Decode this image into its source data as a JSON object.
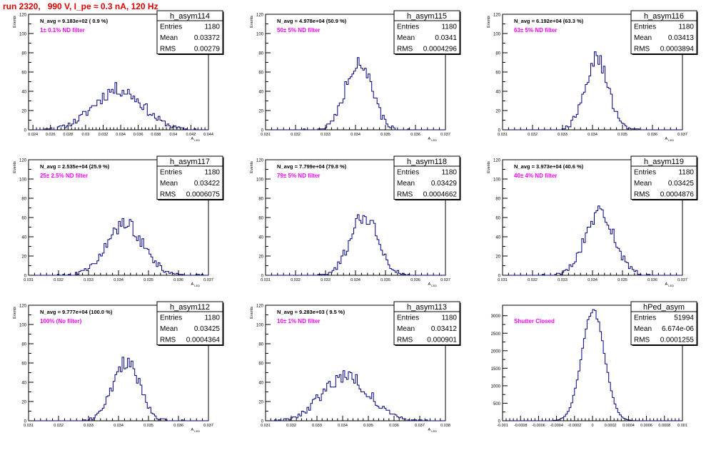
{
  "page_title": "run 2320,   990 V, I_pe ≈ 0.3 nA, 120 Hz",
  "colors": {
    "hist_line": "#000080",
    "annotation": "#ff00ff",
    "title": "#e00000",
    "frame": "#000000"
  },
  "stat_labels": {
    "entries": "Entries",
    "mean": "Mean",
    "rms": "RMS"
  },
  "chart_data": [
    {
      "type": "bar",
      "name": "h_asym114",
      "xlabel": "A_LED",
      "ylabel": "Events",
      "ylim": [
        0,
        120
      ],
      "yticks": [
        0,
        20,
        40,
        60,
        80,
        100,
        120
      ],
      "xlim": [
        0.0235,
        0.044
      ],
      "xticks": [
        0.024,
        0.026,
        0.028,
        0.03,
        0.032,
        0.034,
        0.036,
        0.038,
        0.04,
        0.042,
        0.044
      ],
      "xtick_labels": [
        "0.024",
        "0.026",
        "0.028",
        "0.03",
        "0.032",
        "0.034",
        "0.036",
        "0.038",
        "0.04",
        "0.042",
        "0.044"
      ],
      "navg": "N_avg = 9.183e+02 ( 0.9 %)",
      "filter": "1± 0.1% ND filter",
      "stats": {
        "entries": "1180",
        "mean": "0.03372",
        "rms": "0.00279"
      },
      "mean": 0.03372,
      "rms": 0.00279,
      "peak": 42,
      "nbins": 100,
      "seed": 11
    },
    {
      "type": "bar",
      "name": "h_asym115",
      "xlabel": "A_LED",
      "ylabel": "Events",
      "ylim": [
        0,
        120
      ],
      "yticks": [
        0,
        20,
        40,
        60,
        80,
        100,
        120
      ],
      "xlim": [
        0.031,
        0.037
      ],
      "xticks": [
        0.031,
        0.032,
        0.033,
        0.034,
        0.035,
        0.036,
        0.037
      ],
      "xtick_labels": [
        "0.031",
        "0.032",
        "0.033",
        "0.034",
        "0.035",
        "0.036",
        "0.037"
      ],
      "navg": "N_avg = 4.978e+04 (50.9 %)",
      "filter": "50± 5% ND filter",
      "stats": {
        "entries": "1180",
        "mean": "0.0341",
        "rms": "0.0004296"
      },
      "mean": 0.0341,
      "rms": 0.0004296,
      "peak": 72,
      "nbins": 100,
      "seed": 22
    },
    {
      "type": "bar",
      "name": "h_asym116",
      "xlabel": "A_LED",
      "ylabel": "Events",
      "ylim": [
        0,
        120
      ],
      "yticks": [
        0,
        20,
        40,
        60,
        80,
        100,
        120
      ],
      "xlim": [
        0.031,
        0.037
      ],
      "xticks": [
        0.031,
        0.032,
        0.033,
        0.034,
        0.035,
        0.036,
        0.037
      ],
      "xtick_labels": [
        "0.031",
        "0.032",
        "0.033",
        "0.034",
        "0.035",
        "0.036",
        "0.037"
      ],
      "navg": "N_avg = 6.192e+04 (63.3 %)",
      "filter": "63± 5% ND filter",
      "stats": {
        "entries": "1180",
        "mean": "0.03413",
        "rms": "0.0003894"
      },
      "mean": 0.03413,
      "rms": 0.0003894,
      "peak": 74,
      "nbins": 100,
      "seed": 33
    },
    {
      "type": "bar",
      "name": "h_asym117",
      "xlabel": "A_LED",
      "ylabel": "Events",
      "ylim": [
        0,
        120
      ],
      "yticks": [
        0,
        20,
        40,
        60,
        80,
        100,
        120
      ],
      "xlim": [
        0.031,
        0.037
      ],
      "xticks": [
        0.031,
        0.032,
        0.033,
        0.034,
        0.035,
        0.036,
        0.037
      ],
      "xtick_labels": [
        "0.031",
        "0.032",
        "0.033",
        "0.034",
        "0.035",
        "0.036",
        "0.037"
      ],
      "navg": "N_avg = 2.535e+04 (25.9 %)",
      "filter": "25± 2.5% ND filter",
      "stats": {
        "entries": "1180",
        "mean": "0.03422",
        "rms": "0.0006075"
      },
      "mean": 0.03422,
      "rms": 0.0006075,
      "peak": 53,
      "nbins": 100,
      "seed": 44
    },
    {
      "type": "bar",
      "name": "h_asym118",
      "xlabel": "A_LED",
      "ylabel": "Events",
      "ylim": [
        0,
        120
      ],
      "yticks": [
        0,
        20,
        40,
        60,
        80,
        100,
        120
      ],
      "xlim": [
        0.031,
        0.037
      ],
      "xticks": [
        0.031,
        0.032,
        0.033,
        0.034,
        0.035,
        0.036,
        0.037
      ],
      "xtick_labels": [
        "0.031",
        "0.032",
        "0.033",
        "0.034",
        "0.035",
        "0.036",
        "0.037"
      ],
      "navg": "N_avg = 7.799e+04 (79.8 %)",
      "filter": "79± 5% ND filter",
      "stats": {
        "entries": "1180",
        "mean": "0.03429",
        "rms": "0.0004662"
      },
      "mean": 0.03429,
      "rms": 0.0004662,
      "peak": 63,
      "nbins": 100,
      "seed": 55
    },
    {
      "type": "bar",
      "name": "h_asym119",
      "xlabel": "A_LED",
      "ylabel": "Events",
      "ylim": [
        0,
        120
      ],
      "yticks": [
        0,
        20,
        40,
        60,
        80,
        100,
        120
      ],
      "xlim": [
        0.031,
        0.037
      ],
      "xticks": [
        0.031,
        0.032,
        0.033,
        0.034,
        0.035,
        0.036,
        0.037
      ],
      "xtick_labels": [
        "0.031",
        "0.032",
        "0.033",
        "0.034",
        "0.035",
        "0.036",
        "0.037"
      ],
      "navg": "N_avg = 3.973e+04 (40.6 %)",
      "filter": "40± 4% ND filter",
      "stats": {
        "entries": "1180",
        "mean": "0.03425",
        "rms": "0.0004876"
      },
      "mean": 0.03425,
      "rms": 0.0004876,
      "peak": 65,
      "nbins": 100,
      "seed": 66
    },
    {
      "type": "bar",
      "name": "h_asym112",
      "xlabel": "A_LED",
      "ylabel": "Events",
      "ylim": [
        0,
        120
      ],
      "yticks": [
        0,
        20,
        40,
        60,
        80,
        100,
        120
      ],
      "xlim": [
        0.031,
        0.037
      ],
      "xticks": [
        0.031,
        0.032,
        0.033,
        0.034,
        0.035,
        0.036,
        0.037
      ],
      "xtick_labels": [
        "0.031",
        "0.032",
        "0.033",
        "0.034",
        "0.035",
        "0.036",
        "0.037"
      ],
      "navg": "N_avg = 9.777e+04 (100.0 %)",
      "filter": "100% (No filter)",
      "stats": {
        "entries": "1180",
        "mean": "0.03425",
        "rms": "0.0004364"
      },
      "mean": 0.03425,
      "rms": 0.0004364,
      "peak": 62,
      "nbins": 100,
      "seed": 77
    },
    {
      "type": "bar",
      "name": "h_asym113",
      "xlabel": "A_LED",
      "ylabel": "Events",
      "ylim": [
        0,
        120
      ],
      "yticks": [
        0,
        20,
        40,
        60,
        80,
        100,
        120
      ],
      "xlim": [
        0.031,
        0.038
      ],
      "xticks": [
        0.031,
        0.032,
        0.033,
        0.034,
        0.035,
        0.036,
        0.037,
        0.038
      ],
      "xtick_labels": [
        "0.031",
        "0.032",
        "0.033",
        "0.034",
        "0.035",
        "0.036",
        "0.037",
        "0.038"
      ],
      "navg": "N_avg = 9.283e+03 ( 9.5 %)",
      "filter": "10± 1% ND filter",
      "stats": {
        "entries": "1180",
        "mean": "0.03412",
        "rms": "0.000901"
      },
      "mean": 0.03412,
      "rms": 0.000901,
      "peak": 47,
      "nbins": 100,
      "seed": 88
    },
    {
      "type": "bar",
      "name": "hPed_asym",
      "xlabel": "",
      "ylabel": "",
      "ylim": [
        0,
        3300
      ],
      "yticks": [
        0,
        500,
        1000,
        1500,
        2000,
        2500,
        3000
      ],
      "xlim": [
        -0.001,
        0.001
      ],
      "xticks": [
        -0.001,
        -0.0008,
        -0.0006,
        -0.0004,
        -0.0002,
        0,
        0.0002,
        0.0004,
        0.0006,
        0.0008,
        0.001
      ],
      "xtick_labels": [
        "-0.001",
        "-0.0008",
        "-0.0006",
        "-0.0004",
        "-0.0002",
        "0",
        "0.0002",
        "0.0004",
        "0.0006",
        "0.0008",
        "0.001"
      ],
      "navg": "",
      "filter": "Shutter Closed",
      "stats": {
        "entries": "51994",
        "mean": "6.674e-06",
        "rms": "0.0001255"
      },
      "mean": 6.674e-06,
      "rms": 0.0001255,
      "peak": 3150,
      "nbins": 100,
      "seed": 99
    }
  ]
}
